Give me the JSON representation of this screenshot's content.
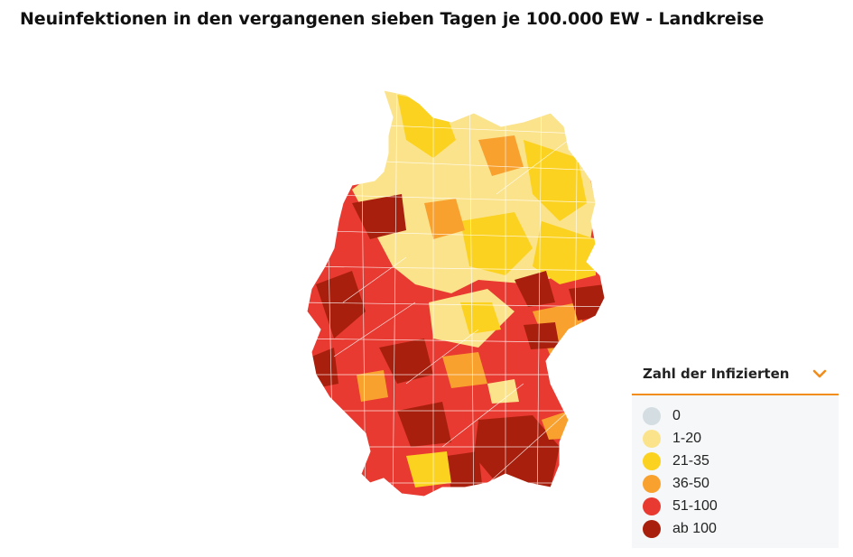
{
  "title": "Neuinfektionen in den vergangenen sieben Tagen je 100.000 EW - Landkreise",
  "legend": {
    "title": "Zahl der Infizierten",
    "toggle_icon": "chevron-down-icon",
    "accent": "#f28c1a",
    "items": [
      {
        "label": "0",
        "color": "#d3dde2"
      },
      {
        "label": "1-20",
        "color": "#fbe38c"
      },
      {
        "label": "21-35",
        "color": "#fbd21f"
      },
      {
        "label": "36-50",
        "color": "#f9a12f"
      },
      {
        "label": "51-100",
        "color": "#e83a31"
      },
      {
        "label": "ab 100",
        "color": "#a8200d"
      }
    ]
  },
  "map": {
    "region": "Deutschland",
    "classes_by_area": {
      "north_coast": "1-20",
      "northeast": "21-35",
      "west": "51-100",
      "south": "51-100",
      "southeast": "ab 100"
    }
  }
}
